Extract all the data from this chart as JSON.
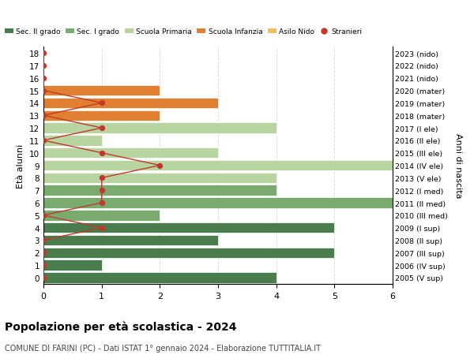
{
  "ages": [
    18,
    17,
    16,
    15,
    14,
    13,
    12,
    11,
    10,
    9,
    8,
    7,
    6,
    5,
    4,
    3,
    2,
    1,
    0
  ],
  "years": [
    "2005 (V sup)",
    "2006 (IV sup)",
    "2007 (III sup)",
    "2008 (II sup)",
    "2009 (I sup)",
    "2010 (III med)",
    "2011 (II med)",
    "2012 (I med)",
    "2013 (V ele)",
    "2014 (IV ele)",
    "2015 (III ele)",
    "2016 (II ele)",
    "2017 (I ele)",
    "2018 (mater)",
    "2019 (mater)",
    "2020 (mater)",
    "2021 (nido)",
    "2022 (nido)",
    "2023 (nido)"
  ],
  "bar_values": [
    4,
    1,
    5,
    3,
    5,
    2,
    6,
    4,
    4,
    6,
    3,
    1,
    4,
    2,
    3,
    2,
    0,
    0,
    0
  ],
  "bar_colors": [
    "#4a7c4e",
    "#4a7c4e",
    "#4a7c4e",
    "#4a7c4e",
    "#4a7c4e",
    "#7aab6e",
    "#7aab6e",
    "#7aab6e",
    "#b8d4a0",
    "#b8d4a0",
    "#b8d4a0",
    "#b8d4a0",
    "#b8d4a0",
    "#e08030",
    "#e08030",
    "#e08030",
    "#f0c060",
    "#f0c060",
    "#f0c060"
  ],
  "stranieri_values": [
    0,
    0,
    0,
    0,
    1,
    0,
    1,
    1,
    1,
    2,
    1,
    0,
    1,
    0,
    1,
    0,
    0,
    0,
    0
  ],
  "stranieri_color": "#c0392b",
  "color_sec2": "#4a7c4e",
  "color_sec1": "#7aab6e",
  "color_primaria": "#b8d4a0",
  "color_infanzia": "#e08030",
  "color_nido": "#f0c060",
  "title": "Popolazione per età scolastica - 2024",
  "subtitle": "COMUNE DI FARINI (PC) - Dati ISTAT 1° gennaio 2024 - Elaborazione TUTTITALIA.IT",
  "ylabel": "Età alunni",
  "ylabel2": "Anni di nascita",
  "xlim": [
    0,
    6
  ],
  "legend_labels": [
    "Sec. II grado",
    "Sec. I grado",
    "Scuola Primaria",
    "Scuola Infanzia",
    "Asilo Nido",
    "Stranieri"
  ],
  "background_color": "#ffffff",
  "grid_color": "#dddddd"
}
